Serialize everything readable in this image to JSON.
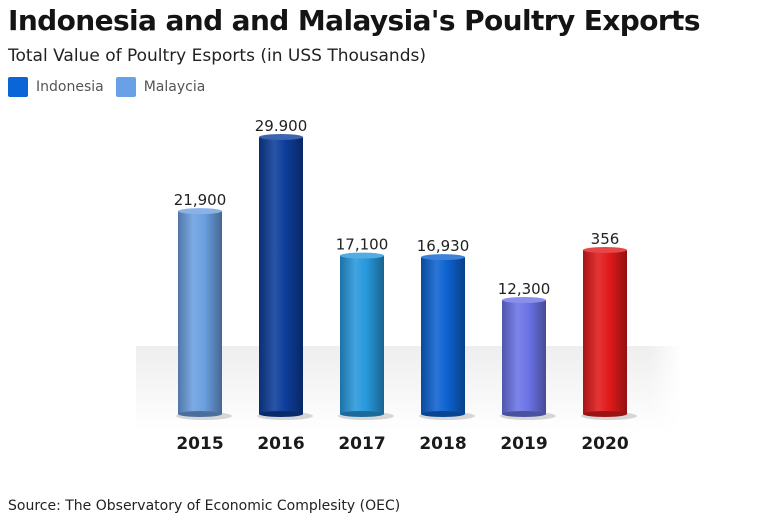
{
  "chart_data": {
    "type": "bar",
    "title": "Indonesia and and Malaysia's Poultry Exports",
    "subtitle": "Total Value of Poultry Esports (in USS Thousands)",
    "legend": [
      {
        "name": "Indonesia",
        "color": "#0a66d6"
      },
      {
        "name": "Malaycia",
        "color": "#6aa0e6"
      }
    ],
    "legend_position": "top-left",
    "categories": [
      "2015",
      "2016",
      "2017",
      "2018",
      "2019",
      "2020"
    ],
    "values": [
      21900,
      29900,
      17100,
      16930,
      12300,
      356
    ],
    "value_labels": [
      "21,900",
      "29.900",
      "17,100",
      "16,930",
      "12,300",
      "356"
    ],
    "bar_colors": [
      "#6b9fe0",
      "#0d3d9a",
      "#2798dc",
      "#0d62d0",
      "#6b73e6",
      "#e01a1a"
    ],
    "grid": false
  },
  "source": "Source: The Observatory of Economic Complesity (OEC)"
}
